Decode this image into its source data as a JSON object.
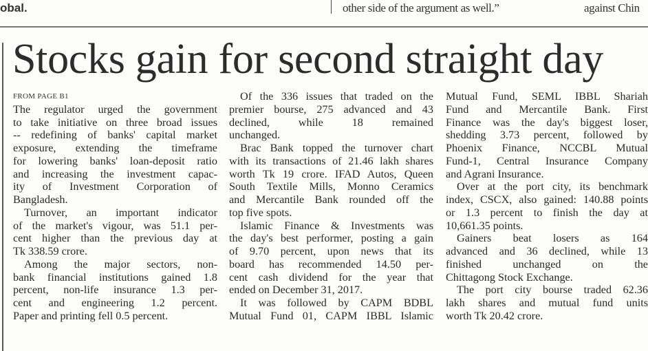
{
  "top_strip": {
    "left_fragment": "obal.",
    "quote_fragment": "other side of the argument as well.”",
    "right_fragment": "against Chin"
  },
  "article": {
    "headline": "Stocks gain for second straight day",
    "kicker": "FROM PAGE B1",
    "columns": [
      {
        "paragraphs": [
          {
            "indent": false,
            "lines": [
              "The regulator urged the government",
              "to take initiative on three broad issues",
              "-- redefining of banks' capital market",
              "exposure, extending the timeframe",
              "for lowering banks' loan-deposit ratio",
              "and increasing the investment capac-",
              "ity of Investment Corporation of",
              "Bangladesh."
            ]
          },
          {
            "indent": true,
            "lines": [
              "Turnover, an important indicator",
              "of the market's vigour, was 51.1 per-",
              "cent higher than the previous day at",
              "Tk 338.59 crore."
            ]
          },
          {
            "indent": true,
            "lines": [
              "Among the major sectors, non-",
              "bank financial institutions gained 1.8",
              "percent, non-life insurance 1.3 per-",
              "cent and engineering 1.2 percent.",
              "Paper and printing fell 0.5 percent."
            ]
          }
        ]
      },
      {
        "paragraphs": [
          {
            "indent": true,
            "lines": [
              "Of the 336 issues that traded on the",
              "premier bourse, 275 advanced and 43",
              "declined, while 18 remained",
              "unchanged."
            ]
          },
          {
            "indent": true,
            "lines": [
              "Brac Bank topped the turnover chart",
              "with its transactions of 21.46 lakh shares",
              "worth Tk 19 crore. IFAD Autos, Queen",
              "South Textile Mills, Monno Ceramics",
              "and Mercantile Bank rounded off the",
              "top five spots."
            ]
          },
          {
            "indent": true,
            "lines": [
              "Islamic Finance & Investments was",
              "the day's best performer, posting a gain",
              "of 9.70 percent, upon news that its",
              "board has recommended 14.50 per-",
              "cent cash dividend for the year that",
              "ended on December 31, 2017."
            ]
          },
          {
            "indent": true,
            "continues": true,
            "lines": [
              "It was followed by CAPM BDBL",
              "Mutual Fund 01, CAPM IBBL Islamic"
            ]
          }
        ]
      },
      {
        "paragraphs": [
          {
            "indent": false,
            "lines": [
              "Mutual Fund, SEML IBBL Shariah",
              "Fund and Mercantile Bank. First",
              "Finance was the day's biggest loser,",
              "shedding 3.73 percent, followed by",
              "Phoenix Finance, NCCBL Mutual",
              "Fund-1, Central Insurance Company",
              "and Agrani Insurance."
            ]
          },
          {
            "indent": true,
            "lines": [
              "Over at the port city, its benchmark",
              "index, CSCX, also gained: 140.88 points",
              "or 1.3 percent to finish the day at",
              "10,661.35 points."
            ]
          },
          {
            "indent": true,
            "lines": [
              "Gainers beat losers as 164",
              "advanced and 36 declined, while 13",
              "finished unchanged on the",
              "Chittagong Stock Exchange."
            ]
          },
          {
            "indent": true,
            "lines": [
              "The port city bourse traded 62.36",
              "lakh shares and mutual fund units",
              "worth Tk 20.42 crore."
            ]
          }
        ]
      }
    ]
  }
}
